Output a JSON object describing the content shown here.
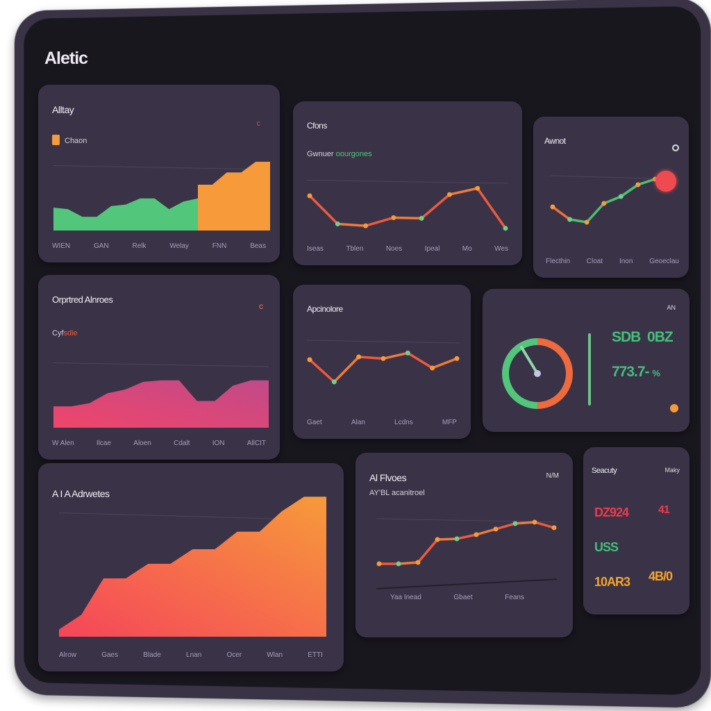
{
  "app": {
    "title": "Aletic"
  },
  "colors": {
    "green": "#52c77b",
    "orange": "#f79a3a",
    "red": "#ef5a3c",
    "pink": "#e8457a",
    "bg": "#19171e",
    "panel": "#3a3347"
  },
  "panels": {
    "p1": {
      "title": "Alltay",
      "legend": "Chaon",
      "indicator": "c",
      "x": [
        "WIEN",
        "GAN",
        "Relk",
        "Welay",
        "FNN",
        "Beas"
      ]
    },
    "p2": {
      "title": "Cfons",
      "subtitle_a": "Gwnuer",
      "subtitle_b": "oourgones",
      "x": [
        "Iseas",
        "Tblen",
        "Noes",
        "Ipeal",
        "Mo",
        "Wes"
      ]
    },
    "p3": {
      "title": "Awnot",
      "x": [
        "Flecthin",
        "Cloat",
        "Inon",
        "Geoeclau"
      ]
    },
    "p4": {
      "title": "Orprtred Alnroes",
      "subtitle_a": "Cyf",
      "subtitle_b": "sdie",
      "indicator": "c",
      "x": [
        "W Alen",
        "Ilcae",
        "Aloen",
        "Cdalt",
        "ION",
        "AllCIT"
      ]
    },
    "p5": {
      "title": "Apcinolore",
      "x": [
        "Gaet",
        "Alan",
        "Lcdns",
        "MFP"
      ]
    },
    "p6": {
      "label": "AN",
      "value1a": "SDB",
      "value1b": "0BZ",
      "value2a": "773.7-",
      "value2b": "%",
      "gauge_green_fraction": 0.5,
      "gauge_orange_fraction": 0.5
    },
    "p7": {
      "title": "A I A Adrwetes",
      "x": [
        "Alrow",
        "Gaes",
        "Blade",
        "Lnan",
        "Ocer",
        "Wlan",
        "ETTI"
      ]
    },
    "p8": {
      "title": "Al Flvoes",
      "subtitle": "AY'BL acanitroel",
      "label": "N/M",
      "x": [
        "Yaa Inead",
        "Gbaet",
        "Feans"
      ]
    },
    "p9": {
      "title": "Seacuty",
      "label": "Maky",
      "v1": "DZ924",
      "v1b": "41",
      "v2": "USS",
      "v3": "10AR3",
      "v3b": "4B/0"
    }
  },
  "chart_data": [
    {
      "type": "area",
      "panel": "p1",
      "series": [
        {
          "color": "#52c77b",
          "values": [
            30,
            28,
            18,
            18,
            32,
            34,
            42,
            42,
            28,
            38,
            42
          ]
        },
        {
          "color": "#f79a3a",
          "values": [
            60,
            60,
            76,
            76,
            90,
            90
          ]
        }
      ]
    },
    {
      "type": "line",
      "panel": "p2",
      "values": [
        60,
        15,
        12,
        25,
        24,
        62,
        72,
        8
      ]
    },
    {
      "type": "line",
      "panel": "p3",
      "values": [
        40,
        22,
        18,
        45,
        55,
        72,
        80,
        70
      ]
    },
    {
      "type": "area",
      "panel": "p4",
      "values": [
        28,
        28,
        32,
        45,
        50,
        60,
        62,
        62,
        35,
        35,
        55,
        62,
        62
      ]
    },
    {
      "type": "line",
      "panel": "p5",
      "values": [
        50,
        10,
        55,
        52,
        62,
        35,
        52
      ]
    },
    {
      "type": "area",
      "panel": "p7",
      "values": [
        5,
        15,
        40,
        40,
        50,
        50,
        60,
        60,
        72,
        72,
        86,
        96,
        96
      ]
    },
    {
      "type": "line",
      "panel": "p8",
      "values": [
        20,
        20,
        22,
        55,
        56,
        62,
        70,
        78,
        80,
        72
      ]
    }
  ]
}
